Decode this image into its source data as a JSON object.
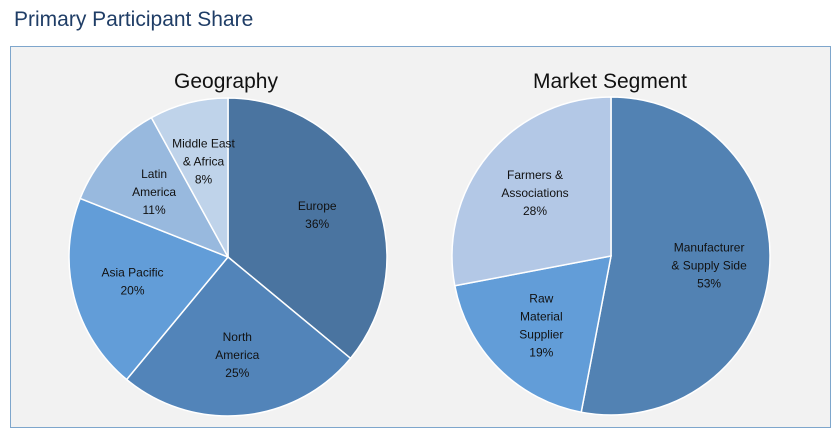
{
  "header": {
    "title": "Primary Participant Share"
  },
  "chart_data": [
    {
      "type": "pie",
      "title": "Geography",
      "slices": [
        {
          "label_lines": [
            "Europe",
            "36%"
          ],
          "value": 36,
          "color": "#4a74a0",
          "label_color": "#ffffff"
        },
        {
          "label_lines": [
            "North",
            "America",
            "25%"
          ],
          "value": 25,
          "color": "#5284b9",
          "label_color": "#111111"
        },
        {
          "label_lines": [
            "Asia Pacific",
            "20%"
          ],
          "value": 20,
          "color": "#629dd8",
          "label_color": "#111111"
        },
        {
          "label_lines": [
            "Latin",
            "America",
            "11%"
          ],
          "value": 11,
          "color": "#98b9de",
          "label_color": "#111111"
        },
        {
          "label_lines": [
            "Middle East",
            "& Africa",
            "8%"
          ],
          "value": 8,
          "color": "#bfd3ea",
          "label_color": "#111111"
        }
      ]
    },
    {
      "type": "pie",
      "title": "Market Segment",
      "slices": [
        {
          "label_lines": [
            "Manufacturer",
            "& Supply Side",
            "53%"
          ],
          "value": 53,
          "color": "#5282b3",
          "label_color": "#ffffff"
        },
        {
          "label_lines": [
            "Raw",
            "Material",
            "Supplier",
            "19%"
          ],
          "value": 19,
          "color": "#629dd8",
          "label_color": "#111111"
        },
        {
          "label_lines": [
            "Farmers &",
            "Associations",
            "28%"
          ],
          "value": 28,
          "color": "#b3c8e6",
          "label_color": "#111111"
        }
      ]
    }
  ]
}
